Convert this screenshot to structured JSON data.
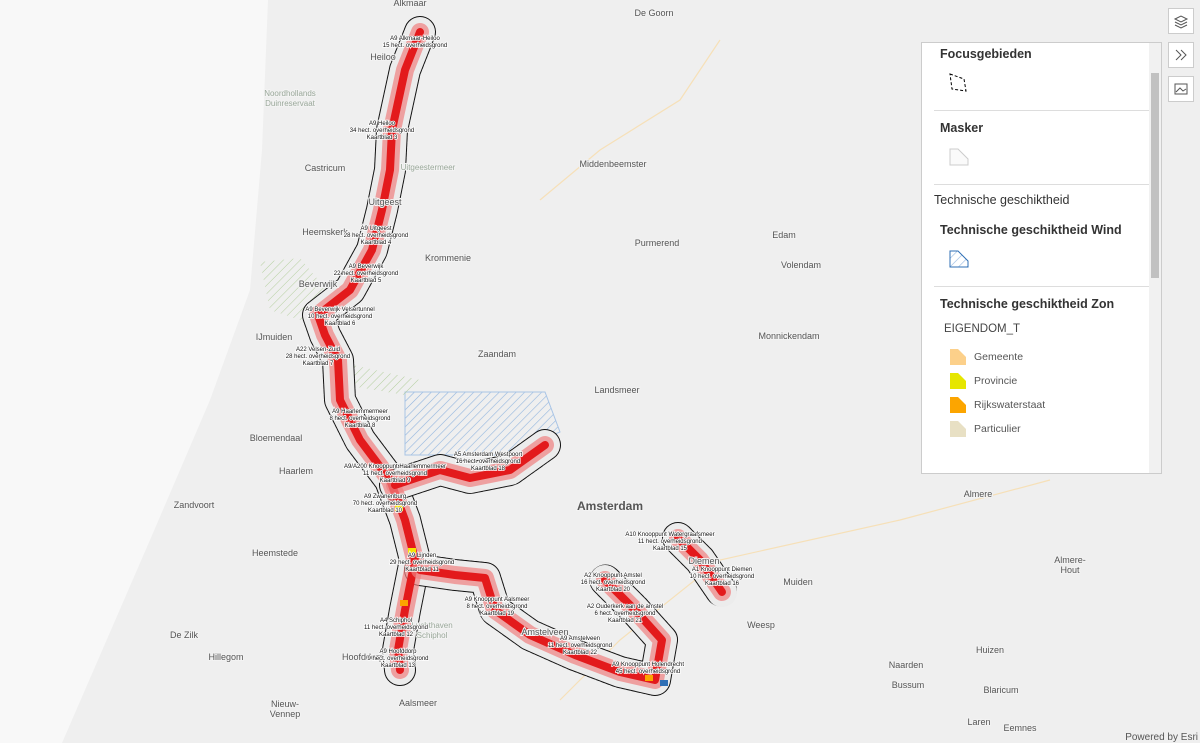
{
  "map": {
    "places": [
      "Alkmaar",
      "De Goorn",
      "Heiloo",
      [
        "Noordhollands",
        "Duinreservaat"
      ],
      "Castricum",
      "Uitgeestermeer",
      "Middenbeemster",
      "Uitgeest",
      "Heemskerk",
      "Purmerend",
      "Edam",
      "Volendam",
      "Krommenie",
      "Beverwijk",
      "IJmuiden",
      "Monnickendam",
      "Zaandam",
      "Landsmeer",
      "Bloemendaal",
      "Haarlem",
      "Zandvoort",
      "Amsterdam",
      "Almere",
      "Heemstede",
      "Diemen",
      "Muiden",
      [
        "Almere-",
        "Hout"
      ],
      "Weesp",
      "Amstelveen",
      [
        "Luchthaven",
        "Schiphol"
      ],
      "Hoofddorp",
      "De Zilk",
      "Hillegom",
      "Naarden",
      "Huizen",
      "Bussum",
      "Blaricum",
      [
        "Nieuw-",
        "Vennep"
      ],
      "Aalsmeer",
      "Laren",
      "Eemnes"
    ],
    "segment_labels": [
      [
        "A9 Alkmaar-Heiloo",
        "15 hect. overheidsgrond"
      ],
      [
        "A9 Heiloo",
        "34 hect. overheidsgrond",
        "Kaartblad 3"
      ],
      [
        "A9 Uitgeest",
        "28 hect. overheidsgrond",
        "Kaartblad 4"
      ],
      [
        "A9 Beverwijk",
        "22 hect. overheidsgrond",
        "Kaartblad 5"
      ],
      [
        "A9 Beverwijk Velsertunnel",
        "10 hect. overheidsgrond",
        "Kaartblad 6"
      ],
      [
        "A22 Velsen-Zuid",
        "28 hect. overheidsgrond",
        "Kaartblad 7"
      ],
      [
        "A9 Haarlemmermeer",
        "8 hect. overheidsgrond",
        "Kaartblad 8"
      ],
      [
        "A9/A200 Knooppunt Haarlemmermeer",
        "11 hect. overheidsgrond",
        "Kaartblad 9"
      ],
      [
        "A5 Amsterdam Westpoort",
        "16 hect. overheidsgrond",
        "Kaartblad 18"
      ],
      [
        "A9 Zwanenburg",
        "70 hect. overheidsgrond",
        "Kaartblad 10"
      ],
      [
        "A9 Lijnden",
        "29 hect. overheidsgrond",
        "Kaartblad 11"
      ],
      [
        "A4 Schiphol",
        "11 hect. overheidsgrond",
        "Kaartblad 12"
      ],
      [
        "A9 Hoofddorp",
        "9 hect. overheidsgrond",
        "Kaartblad 13"
      ],
      [
        "A9 Knooppunt Aalsmeer",
        "8 hect. overheidsgrond",
        "Kaartblad 19"
      ],
      [
        "A2 Knooppunt Amstel",
        "16 hect. overheidsgrond",
        "Kaartblad 20"
      ],
      [
        "A2 Ouderkerk aan de amstel",
        "6 hect. overheidsgrond",
        "Kaartblad 21"
      ],
      [
        "A9 Amstelveen",
        "11 hect. overheidsgrond",
        "Kaartblad 22"
      ],
      [
        "A9 Knooppunt Holendrecht",
        "45 hect. overheidsgrond"
      ],
      [
        "A10 Knooppunt Watergraafsmeer",
        "11 hect. overheidsgrond",
        "Kaartblad 15"
      ],
      [
        "A1 Knooppunt Diemen",
        "10 hect. overheidsgrond",
        "Kaartblad 16"
      ]
    ],
    "attribution": "Powered by Esri"
  },
  "legend": {
    "focus": {
      "title": "Focusgebieden"
    },
    "mask": {
      "title": "Masker"
    },
    "group": "Technische geschiktheid",
    "wind": {
      "title": "Technische geschiktheid Wind"
    },
    "sun": {
      "title": "Technische geschiktheid Zon",
      "field": "EIGENDOM_T",
      "items": [
        "Gemeente",
        "Provincie",
        "Rijkswaterstaat",
        "Particulier"
      ]
    }
  }
}
